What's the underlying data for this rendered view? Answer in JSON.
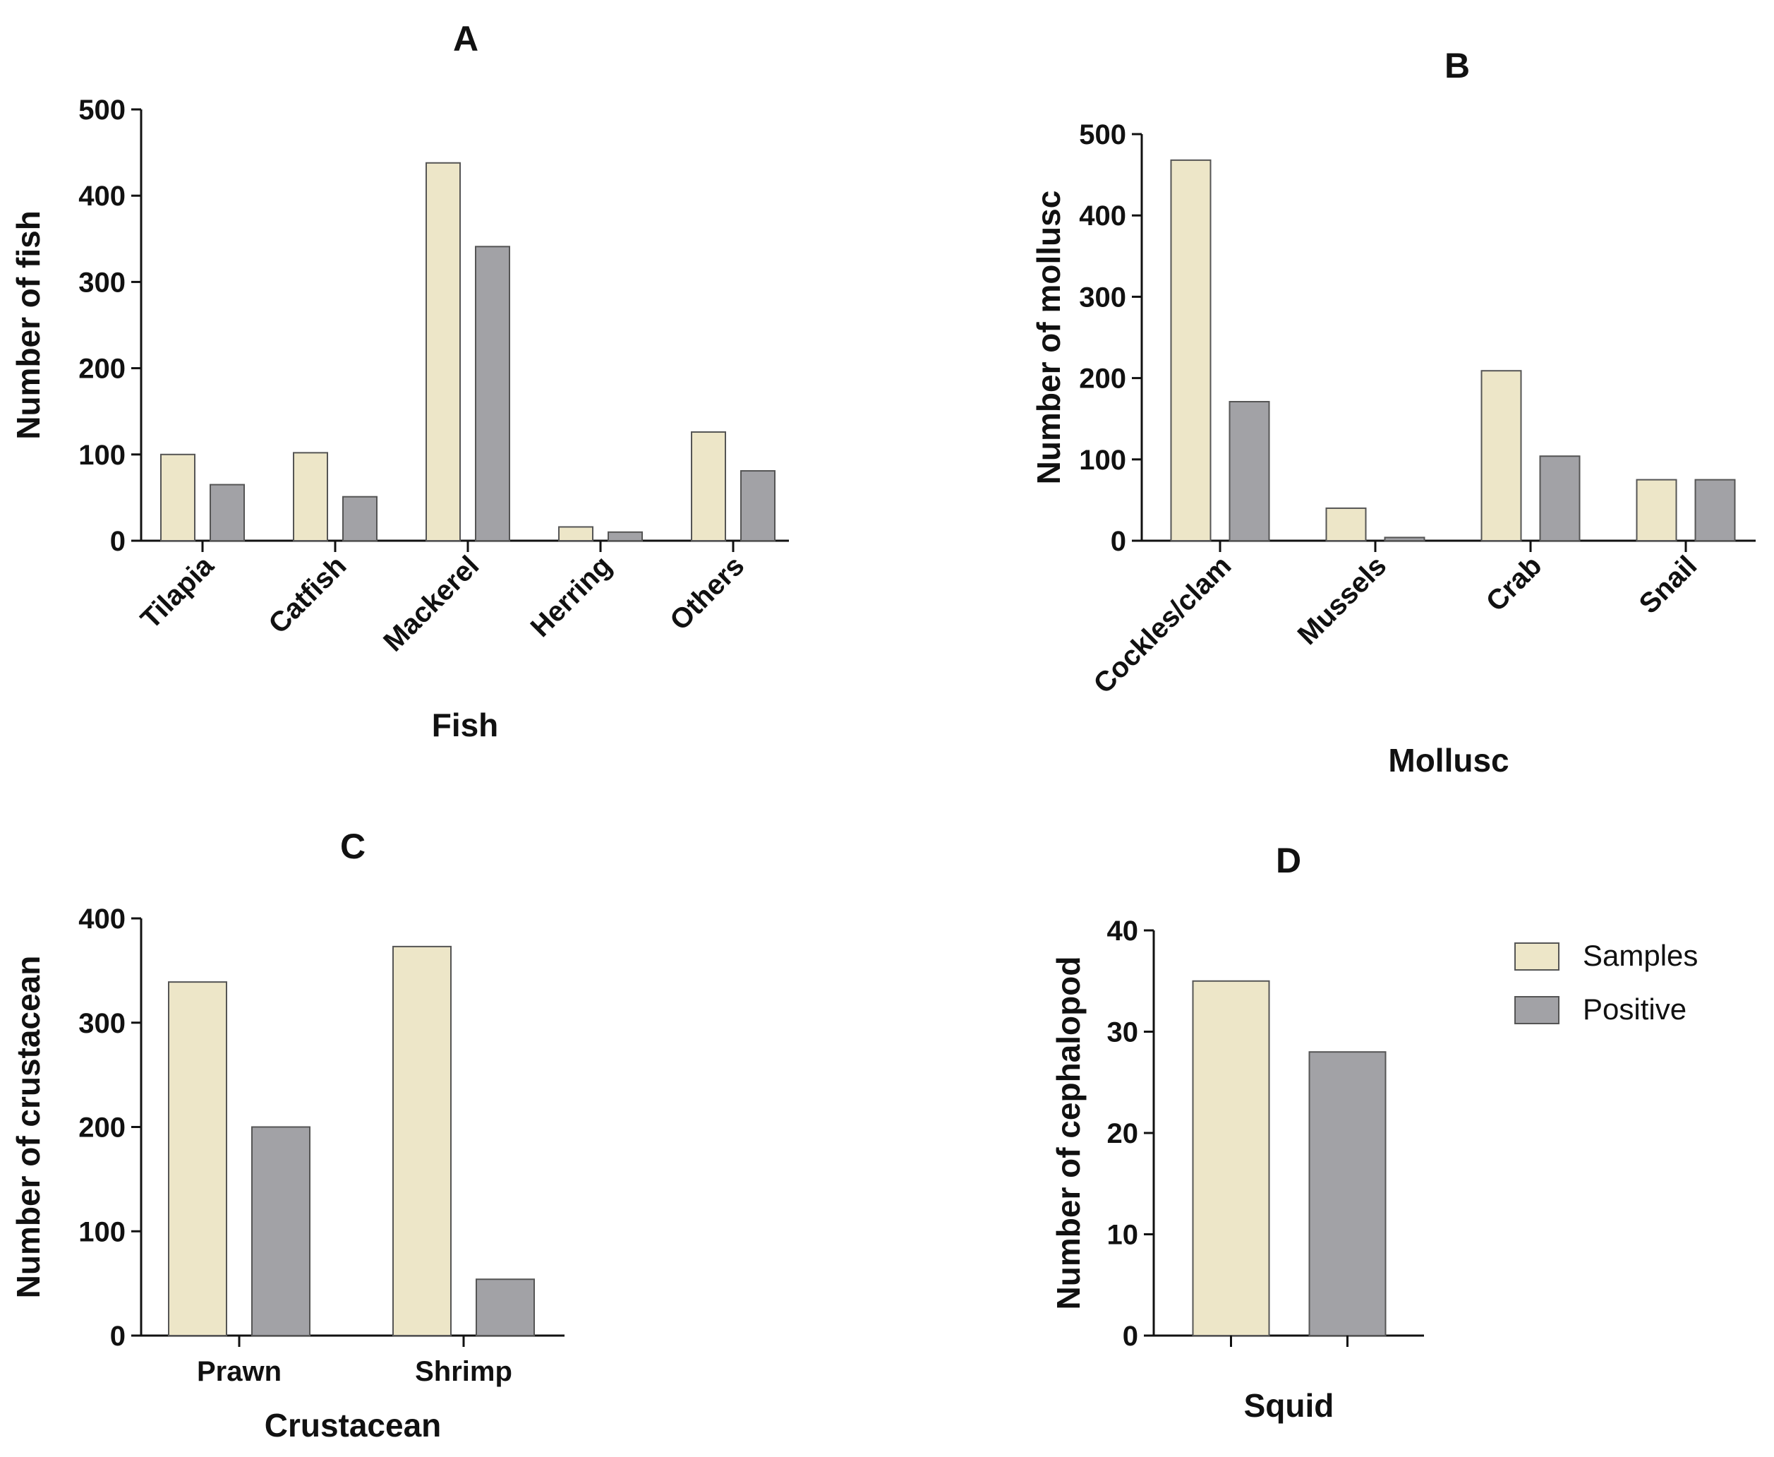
{
  "colors": {
    "samples": "#ede6c8",
    "positive": "#a2a2a6"
  },
  "legend": {
    "entries": [
      {
        "name": "Samples",
        "color_key": "samples"
      },
      {
        "name": "Positive",
        "color_key": "positive"
      }
    ]
  },
  "chart_data": [
    {
      "id": "A",
      "type": "bar",
      "title": "A",
      "xlabel": "Fish",
      "ylabel": "Number of fish",
      "ylim": [
        0,
        500
      ],
      "yticks": [
        0,
        100,
        200,
        300,
        400,
        500
      ],
      "rotate_labels": true,
      "categories": [
        "Tilapia",
        "Catfish",
        "Mackerel",
        "Herring",
        "Others"
      ],
      "series": [
        {
          "name": "Samples",
          "values": [
            100,
            102,
            438,
            16,
            126
          ]
        },
        {
          "name": "Positive",
          "values": [
            65,
            51,
            341,
            10,
            81
          ]
        }
      ]
    },
    {
      "id": "B",
      "type": "bar",
      "title": "B",
      "xlabel": "Mollusc",
      "ylabel": "Number of mollusc",
      "ylim": [
        0,
        500
      ],
      "yticks": [
        0,
        100,
        200,
        300,
        400,
        500
      ],
      "rotate_labels": true,
      "categories": [
        "Cockles/clam",
        "Mussels",
        "Crab",
        "Snail"
      ],
      "series": [
        {
          "name": "Samples",
          "values": [
            468,
            40,
            209,
            75
          ]
        },
        {
          "name": "Positive",
          "values": [
            171,
            4,
            104,
            75
          ]
        }
      ]
    },
    {
      "id": "C",
      "type": "bar",
      "title": "C",
      "xlabel": "Crustacean",
      "ylabel": "Number of crustacean",
      "ylim": [
        0,
        400
      ],
      "yticks": [
        0,
        100,
        200,
        300,
        400
      ],
      "rotate_labels": false,
      "categories": [
        "Prawn",
        "Shrimp"
      ],
      "series": [
        {
          "name": "Samples",
          "values": [
            339,
            373
          ]
        },
        {
          "name": "Positive",
          "values": [
            200,
            54
          ]
        }
      ]
    },
    {
      "id": "D",
      "type": "bar",
      "title": "D",
      "xlabel": "Squid",
      "ylabel": "Number of cephalopod",
      "ylim": [
        0,
        40
      ],
      "yticks": [
        0,
        10,
        20,
        30,
        40
      ],
      "rotate_labels": false,
      "categories": [
        ""
      ],
      "series": [
        {
          "name": "Samples",
          "values": [
            35
          ]
        },
        {
          "name": "Positive",
          "values": [
            28
          ]
        }
      ]
    }
  ]
}
